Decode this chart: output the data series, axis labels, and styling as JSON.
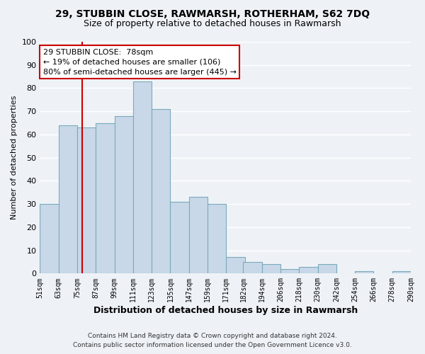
{
  "title1": "29, STUBBIN CLOSE, RAWMARSH, ROTHERHAM, S62 7DQ",
  "title2": "Size of property relative to detached houses in Rawmarsh",
  "xlabel": "Distribution of detached houses by size in Rawmarsh",
  "ylabel": "Number of detached properties",
  "bar_color": "#c8d8e8",
  "bar_edge_color": "#7aaabb",
  "bins": [
    51,
    63,
    75,
    87,
    99,
    111,
    123,
    135,
    147,
    159,
    171,
    182,
    194,
    206,
    218,
    230,
    242,
    254,
    266,
    278,
    290
  ],
  "counts": [
    30,
    64,
    63,
    65,
    68,
    83,
    71,
    31,
    33,
    30,
    7,
    5,
    4,
    2,
    3,
    4,
    0,
    1,
    0,
    1
  ],
  "tick_labels": [
    "51sqm",
    "63sqm",
    "75sqm",
    "87sqm",
    "99sqm",
    "111sqm",
    "123sqm",
    "135sqm",
    "147sqm",
    "159sqm",
    "171sqm",
    "182sqm",
    "194sqm",
    "206sqm",
    "218sqm",
    "230sqm",
    "242sqm",
    "254sqm",
    "266sqm",
    "278sqm",
    "290sqm"
  ],
  "property_size": 78,
  "vline_color": "#cc0000",
  "annotation_title": "29 STUBBIN CLOSE:  78sqm",
  "annotation_line1": "← 19% of detached houses are smaller (106)",
  "annotation_line2": "80% of semi-detached houses are larger (445) →",
  "annotation_box_color": "#ffffff",
  "annotation_box_edge": "#cc0000",
  "footer1": "Contains HM Land Registry data © Crown copyright and database right 2024.",
  "footer2": "Contains public sector information licensed under the Open Government Licence v3.0.",
  "ylim": [
    0,
    100
  ],
  "background_color": "#eef2f7"
}
